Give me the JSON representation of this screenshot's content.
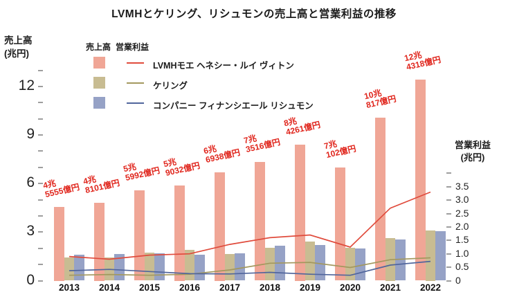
{
  "title": "LVMHとケリング、リシュモンの売上高と営業利益の推移",
  "left_axis": {
    "title_line1": "売上高",
    "title_line2": "(兆円)"
  },
  "right_axis": {
    "title_line1": "営業利益",
    "title_line2": "(兆円)"
  },
  "legend": {
    "bar_column_header": "売上高",
    "line_column_header": "営業利益",
    "items": [
      {
        "label": "LVMHモエ ヘネシー・ルイ ヴィトン",
        "bar_color": "#f0a696",
        "line_color": "#e04b3c"
      },
      {
        "label": "ケリング",
        "bar_color": "#c8bc92",
        "line_color": "#a3985e"
      },
      {
        "label": "コンパニー フィナンシエール リシュモン",
        "bar_color": "#96a2c6",
        "line_color": "#50659c"
      }
    ]
  },
  "chart_data": {
    "type": "combo bar+line",
    "categories": [
      "2013",
      "2014",
      "2015",
      "2016",
      "2017",
      "2018",
      "2019",
      "2020",
      "2021",
      "2022"
    ],
    "bar_series": [
      {
        "key": "lvmh",
        "name": "LVMHモエ ヘネシー・ルイ ヴィトン",
        "metric": "売上高",
        "unit": "兆円",
        "axis": "left",
        "color": "#f0a696",
        "values": [
          4.5555,
          4.8101,
          5.5992,
          5.9032,
          6.6938,
          7.3516,
          8.4261,
          7.0102,
          10.0817,
          12.4318
        ]
      },
      {
        "key": "kering",
        "name": "ケリング",
        "metric": "売上高",
        "unit": "兆円",
        "axis": "left",
        "color": "#c8bc92",
        "values": [
          1.45,
          1.45,
          1.75,
          1.9,
          1.65,
          2.05,
          2.4,
          2.05,
          2.65,
          3.1
        ]
      },
      {
        "key": "richemont",
        "name": "コンパニー フィナンシエール リシュモン",
        "metric": "売上高",
        "unit": "兆円",
        "axis": "left",
        "color": "#96a2c6",
        "values": [
          1.6,
          1.65,
          1.7,
          1.6,
          1.7,
          2.15,
          2.2,
          2.0,
          2.55,
          3.05
        ]
      }
    ],
    "line_series": [
      {
        "key": "lvmh",
        "name": "LVMHモエ ヘネシー・ルイ ヴィトン",
        "metric": "営業利益",
        "unit": "兆円",
        "axis": "right",
        "color": "#e04b3c",
        "values": [
          0.9,
          0.8,
          0.95,
          1.0,
          1.35,
          1.6,
          1.7,
          1.25,
          2.7,
          3.3
        ]
      },
      {
        "key": "kering",
        "name": "ケリング",
        "metric": "営業利益",
        "unit": "兆円",
        "axis": "right",
        "color": "#a3985e",
        "values": [
          0.2,
          0.23,
          0.2,
          0.24,
          0.4,
          0.65,
          0.68,
          0.49,
          0.78,
          0.85
        ]
      },
      {
        "key": "richemont",
        "name": "コンパニー フィナンシエール リシュモン",
        "metric": "営業利益",
        "unit": "兆円",
        "axis": "right",
        "color": "#50659c",
        "values": [
          0.37,
          0.42,
          0.34,
          0.26,
          0.25,
          0.31,
          0.24,
          0.2,
          0.58,
          0.72
        ]
      }
    ],
    "bar_labels": [
      [
        "4兆",
        "5555億円"
      ],
      [
        "4兆",
        "8101億円"
      ],
      [
        "5兆",
        "5992億円"
      ],
      [
        "5兆",
        "9032億円"
      ],
      [
        "6兆",
        "6938億円"
      ],
      [
        "7兆",
        "3516億円"
      ],
      [
        "8兆",
        "4261億円"
      ],
      [
        "7兆",
        "102億円"
      ],
      [
        "10兆",
        "817億円"
      ],
      [
        "12兆",
        "4318億円"
      ]
    ],
    "bar_label_color": "#e0251c",
    "left_axis": {
      "range": [
        0,
        13
      ],
      "major_ticks": [
        0,
        3,
        6,
        9,
        12
      ],
      "minor_tick_step": 1,
      "grid": false
    },
    "right_axis": {
      "range": [
        0,
        4
      ],
      "tick_step": 0.5,
      "max_labeled_tick": 3.5,
      "grid": false
    },
    "legend_position": "upper-left"
  }
}
